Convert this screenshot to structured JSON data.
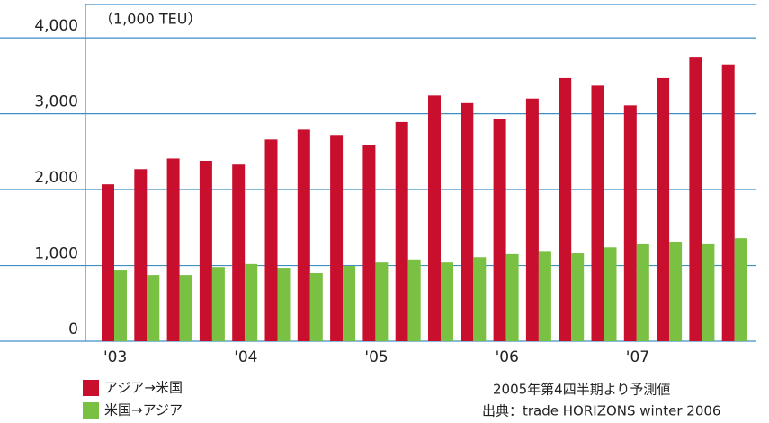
{
  "chart_data": {
    "type": "bar",
    "unit_label": "（1,000 TEU）",
    "categories": [
      "'03",
      null,
      null,
      null,
      "'04",
      null,
      null,
      null,
      "'05",
      null,
      null,
      null,
      "'06",
      null,
      null,
      null,
      "'07",
      null,
      null,
      null
    ],
    "series": [
      {
        "name": "アジア→米国",
        "color": "#c8102e",
        "values": [
          2070,
          2270,
          2410,
          2380,
          2330,
          2660,
          2790,
          2720,
          2590,
          2890,
          3240,
          3140,
          2930,
          3200,
          3470,
          3370,
          3110,
          3470,
          3740,
          3650
        ]
      },
      {
        "name": "米国→アジア",
        "color": "#7ac143",
        "values": [
          935,
          875,
          875,
          980,
          1020,
          970,
          900,
          995,
          1040,
          1080,
          1040,
          1110,
          1150,
          1180,
          1160,
          1240,
          1280,
          1310,
          1280,
          1360
        ]
      }
    ],
    "ylim": [
      0,
      4440
    ],
    "yticks": [
      0,
      {
        "value": 1000,
        "label": "1,000"
      },
      {
        "value": 2000,
        "label": "2,000"
      },
      {
        "value": 3000,
        "label": "3,000"
      },
      {
        "value": 4000,
        "label": "4,000"
      }
    ],
    "grid": true,
    "notes": [
      "2005年第4四半期より予測値",
      "出典：trade HORIZONS winter 2006"
    ]
  }
}
